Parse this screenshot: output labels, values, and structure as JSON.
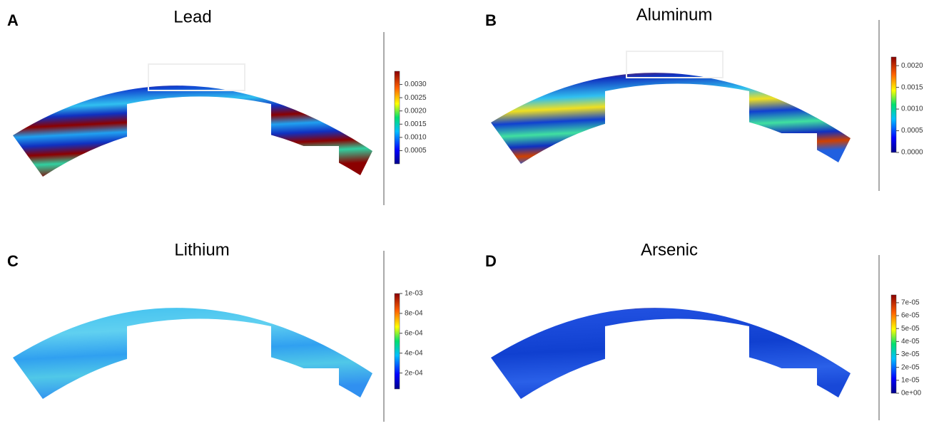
{
  "chart_data": [
    {
      "type": "heatmap",
      "panel": "A",
      "title": "Lead",
      "zlim": [
        0,
        0.0035
      ],
      "zticks": [
        0.0005,
        {
          "value": 0.001,
          "label": "0.0010"
        },
        0.0015,
        {
          "value": 0.002,
          "label": "0.0020"
        },
        0.0025,
        {
          "value": 0.003,
          "label": "0.0030"
        }
      ]
    },
    {
      "type": "heatmap",
      "panel": "B",
      "title": "Aluminum",
      "zlim": [
        0,
        0.0022
      ],
      "zticks": [
        {
          "value": 0,
          "label": "0.0000"
        },
        0.0005,
        {
          "value": 0.001,
          "label": "0.0010"
        },
        0.0015,
        {
          "value": 0.002,
          "label": "0.0020"
        }
      ]
    },
    {
      "type": "heatmap",
      "panel": "C",
      "title": "Lithium",
      "zlim": [
        4e-05,
        0.001
      ],
      "zticks": [
        {
          "value": 0.0002,
          "label": "2e-04"
        },
        {
          "value": 0.0004,
          "label": "4e-04"
        },
        {
          "value": 0.0006,
          "label": "6e-04"
        },
        {
          "value": 0.0008,
          "label": "8e-04"
        },
        {
          "value": 0.001,
          "label": "1e-03"
        }
      ]
    },
    {
      "type": "heatmap",
      "panel": "D",
      "title": "Arsenic",
      "zlim": [
        0,
        7.6e-05
      ],
      "zticks": [
        {
          "value": 0,
          "label": "0e+00"
        },
        {
          "value": 1e-05,
          "label": "1e-05"
        },
        {
          "value": 2e-05,
          "label": "2e-05"
        },
        {
          "value": 3e-05,
          "label": "3e-05"
        },
        {
          "value": 4e-05,
          "label": "4e-05"
        },
        {
          "value": 5e-05,
          "label": "5e-05"
        },
        {
          "value": 6e-05,
          "label": "6e-05"
        },
        {
          "value": 7e-05,
          "label": "7e-05"
        }
      ]
    }
  ]
}
